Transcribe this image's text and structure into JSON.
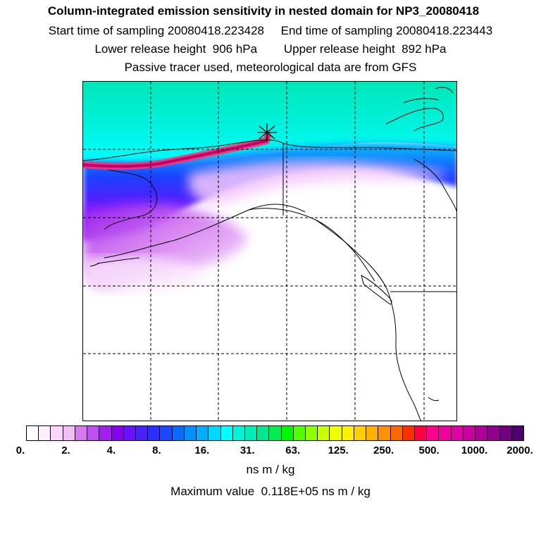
{
  "header": {
    "title": "Column-integrated emission sensitivity in nested domain for NP3_20080418",
    "start_label": "Start time of sampling",
    "start_value": "20080418.223428",
    "end_label": "End time of sampling",
    "end_value": "20080418.223443",
    "lower_label": "Lower release height",
    "lower_value": "906 hPa",
    "upper_label": "Upper release height",
    "upper_value": "892 hPa",
    "tracer_note": "Passive tracer used, meteorological data are from GFS"
  },
  "colors": {
    "upper_field_top": "#00e8c0",
    "upper_field_mid": "#00ffff",
    "band_blue": "#2030ff",
    "band_violet": "#7a00ff",
    "plume_light": "#f2b8ff",
    "trajectory_core": "#c0006e",
    "trajectory_edge": "#ff3070",
    "coast": "#000000",
    "grid": "#000000"
  },
  "map": {
    "markers": [
      "release-point"
    ]
  },
  "colorbar": {
    "colors": [
      "#ffffff",
      "#fdeefd",
      "#f9d6fa",
      "#f2bdf5",
      "#d678f0",
      "#c04ef0",
      "#a51ef0",
      "#8a00f0",
      "#6a10ff",
      "#4a20ff",
      "#2a30ff",
      "#1a48ff",
      "#0a6aff",
      "#0090ff",
      "#00b0ff",
      "#00d8ff",
      "#00ffff",
      "#00f5d8",
      "#00ecb8",
      "#00e890",
      "#00ee50",
      "#00f800",
      "#50ff00",
      "#90ff00",
      "#c8ff00",
      "#f0ff00",
      "#fff000",
      "#ffd000",
      "#ffb000",
      "#ff9000",
      "#ff6800",
      "#ff3000",
      "#ff0040",
      "#ff0090",
      "#f000a0",
      "#e000a8",
      "#cc00a0",
      "#b00098",
      "#90008c",
      "#700080",
      "#500070"
    ],
    "tick_labels": [
      "0.",
      "2.",
      "4.",
      "8.",
      "16.",
      "31.",
      "63.",
      "125.",
      "250.",
      "500.",
      "1000.",
      "2000."
    ],
    "units": "ns m / kg",
    "max_label": "Maximum value",
    "max_value": "0.118E+05 ns m / kg"
  }
}
